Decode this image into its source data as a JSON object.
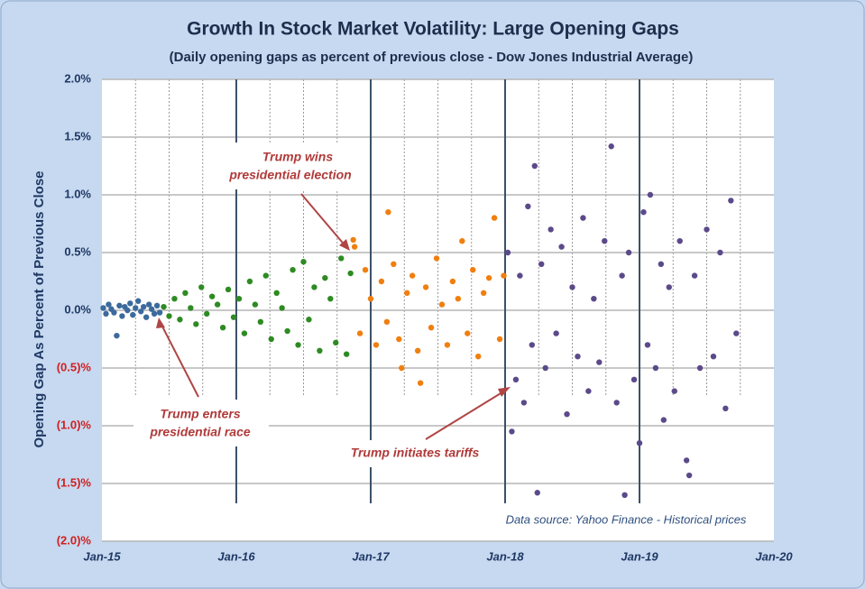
{
  "chart_data": {
    "type": "scatter",
    "title": "Growth In Stock Market Volatility: Large Opening Gaps",
    "subtitle": "(Daily opening gaps as percent of previous close - Dow Jones Industrial Average)",
    "y_label": "Opening Gap As Percent of Previous Close",
    "source": "Data source: Yahoo Finance - Historical prices",
    "annotations": [
      [
        "Trump wins",
        "presidential election"
      ],
      [
        "Trump enters",
        "presidential race"
      ],
      [
        "Trump initiates tariffs"
      ]
    ],
    "xlim": [
      2015,
      2020
    ],
    "xticks": [
      {
        "value": 2015,
        "label": "Jan-15"
      },
      {
        "value": 2016,
        "label": "Jan-16"
      },
      {
        "value": 2017,
        "label": "Jan-17"
      },
      {
        "value": 2018,
        "label": "Jan-18"
      },
      {
        "value": 2019,
        "label": "Jan-19"
      },
      {
        "value": 2020,
        "label": "Jan-20"
      }
    ],
    "x_minor_ticks": [
      2015.25,
      2015.5,
      2015.75,
      2016.25,
      2016.5,
      2016.75,
      2017.25,
      2017.5,
      2017.75,
      2018.25,
      2018.5,
      2018.75,
      2019.25,
      2019.5,
      2019.75
    ],
    "ylim": [
      -2,
      2
    ],
    "yticks": [
      {
        "value": 2,
        "label": "2.0%"
      },
      {
        "value": 1.5,
        "label": "1.5%"
      },
      {
        "value": 1,
        "label": "1.0%"
      },
      {
        "value": 0.5,
        "label": "0.5%"
      },
      {
        "value": 0,
        "label": "0.0%"
      },
      {
        "value": -0.5,
        "label": "(0.5)%"
      },
      {
        "value": -1,
        "label": "(1.0)%"
      },
      {
        "value": -1.5,
        "label": "(1.5)%"
      },
      {
        "value": -2,
        "label": "(2.0)%"
      }
    ],
    "grid": true,
    "series": [
      {
        "color": "#3c6a9c",
        "x": [
          2015.01,
          2015.03,
          2015.05,
          2015.07,
          2015.09,
          2015.11,
          2015.13,
          2015.15,
          2015.17,
          2015.19,
          2015.21,
          2015.23,
          2015.25,
          2015.27,
          2015.29,
          2015.31,
          2015.33,
          2015.35,
          2015.37,
          2015.39,
          2015.41,
          2015.43
        ],
        "values": [
          0.02,
          -0.03,
          0.05,
          0.01,
          -0.02,
          -0.22,
          0.04,
          -0.05,
          0.03,
          0.0,
          0.06,
          -0.04,
          0.02,
          0.08,
          -0.01,
          0.03,
          -0.06,
          0.05,
          0.01,
          -0.03,
          0.04,
          -0.02
        ]
      },
      {
        "color": "#2e8b22",
        "x": [
          2015.46,
          2015.5,
          2015.54,
          2015.58,
          2015.62,
          2015.66,
          2015.7,
          2015.74,
          2015.78,
          2015.82,
          2015.86,
          2015.9,
          2015.94,
          2015.98,
          2016.02,
          2016.06,
          2016.1,
          2016.14,
          2016.18,
          2016.22,
          2016.26,
          2016.3,
          2016.34,
          2016.38,
          2016.42,
          2016.46,
          2016.5,
          2016.54,
          2016.58,
          2016.62,
          2016.66,
          2016.7,
          2016.74,
          2016.78,
          2016.82,
          2016.85
        ],
        "values": [
          0.03,
          -0.05,
          0.1,
          -0.08,
          0.15,
          0.02,
          -0.12,
          0.2,
          -0.03,
          0.12,
          0.05,
          -0.15,
          0.18,
          -0.06,
          0.1,
          -0.2,
          0.25,
          0.05,
          -0.1,
          0.3,
          -0.25,
          0.15,
          0.02,
          -0.18,
          0.35,
          -0.3,
          0.42,
          -0.08,
          0.2,
          -0.35,
          0.28,
          0.1,
          -0.28,
          0.45,
          -0.38,
          0.32
        ]
      },
      {
        "color": "#f07f0f",
        "x": [
          2016.87,
          2016.88,
          2016.92,
          2016.96,
          2017.0,
          2017.04,
          2017.08,
          2017.12,
          2017.13,
          2017.17,
          2017.21,
          2017.23,
          2017.27,
          2017.31,
          2017.35,
          2017.37,
          2017.41,
          2017.45,
          2017.49,
          2017.53,
          2017.57,
          2017.61,
          2017.65,
          2017.68,
          2017.72,
          2017.76,
          2017.8,
          2017.84,
          2017.88,
          2017.92,
          2017.96,
          2017.99
        ],
        "values": [
          0.61,
          0.55,
          -0.2,
          0.35,
          0.1,
          -0.3,
          0.25,
          -0.1,
          0.85,
          0.4,
          -0.25,
          -0.5,
          0.15,
          0.3,
          -0.35,
          -0.63,
          0.2,
          -0.15,
          0.45,
          0.05,
          -0.3,
          0.25,
          0.1,
          0.6,
          -0.2,
          0.35,
          -0.4,
          0.15,
          0.28,
          0.8,
          -0.25,
          0.3
        ]
      },
      {
        "color": "#5b4a8a",
        "x": [
          2018.02,
          2018.05,
          2018.08,
          2018.11,
          2018.14,
          2018.17,
          2018.2,
          2018.22,
          2018.24,
          2018.27,
          2018.3,
          2018.34,
          2018.38,
          2018.42,
          2018.46,
          2018.5,
          2018.54,
          2018.58,
          2018.62,
          2018.66,
          2018.7,
          2018.74,
          2018.79,
          2018.83,
          2018.87,
          2018.89,
          2018.92,
          2018.96,
          2019.0,
          2019.03,
          2019.06,
          2019.08,
          2019.12,
          2019.16,
          2019.18,
          2019.22,
          2019.26,
          2019.3,
          2019.35,
          2019.37,
          2019.41,
          2019.45,
          2019.5,
          2019.55,
          2019.6,
          2019.64,
          2019.68,
          2019.72
        ],
        "values": [
          0.5,
          -1.05,
          -0.6,
          0.3,
          -0.8,
          0.9,
          -0.3,
          1.25,
          -1.58,
          0.4,
          -0.5,
          0.7,
          -0.2,
          0.55,
          -0.9,
          0.2,
          -0.4,
          0.8,
          -0.7,
          0.1,
          -0.45,
          0.6,
          1.42,
          -0.8,
          0.3,
          -1.6,
          0.5,
          -0.6,
          -1.15,
          0.85,
          -0.3,
          1.0,
          -0.5,
          0.4,
          -0.95,
          0.2,
          -0.7,
          0.6,
          -1.3,
          -1.43,
          0.3,
          -0.5,
          0.7,
          -0.4,
          0.5,
          -0.85,
          0.95,
          -0.2
        ]
      }
    ]
  }
}
